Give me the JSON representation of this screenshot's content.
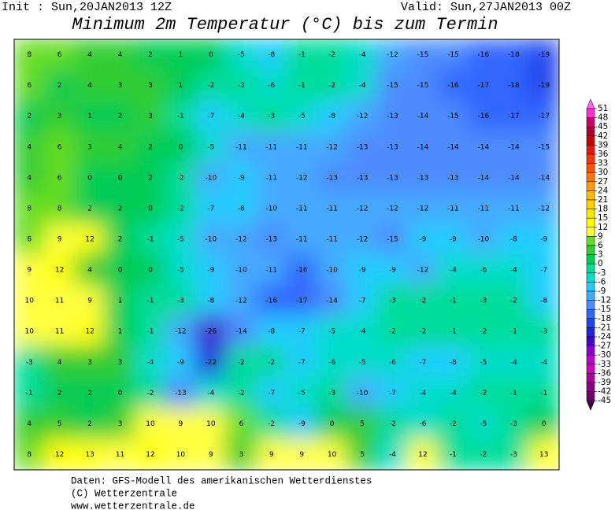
{
  "header": {
    "init": "Init : Sun,20JAN2013 12Z",
    "valid": "Valid: Sun,27JAN2013 00Z",
    "title": "Minimum 2m Temperatur (°C) bis zum Termin"
  },
  "map": {
    "grid": [
      [
        8,
        6,
        4,
        4,
        2,
        1,
        0,
        -5,
        -8,
        -1,
        -2,
        -4,
        -12,
        -15,
        -15,
        -16,
        -18,
        -19
      ],
      [
        6,
        2,
        4,
        3,
        3,
        1,
        -2,
        -3,
        -6,
        -1,
        -2,
        -4,
        -15,
        -15,
        -16,
        -17,
        -18,
        -19
      ],
      [
        2,
        3,
        1,
        2,
        3,
        -1,
        -7,
        -4,
        -3,
        -5,
        -8,
        -12,
        -13,
        -14,
        -15,
        -16,
        -17,
        -17
      ],
      [
        4,
        6,
        3,
        4,
        2,
        0,
        -5,
        -11,
        -11,
        -11,
        -12,
        -13,
        -13,
        -14,
        -14,
        -14,
        -14,
        -15
      ],
      [
        4,
        6,
        0,
        0,
        2,
        -2,
        -10,
        -9,
        -11,
        -12,
        -13,
        -13,
        -13,
        -13,
        -13,
        -14,
        -14,
        -14
      ],
      [
        8,
        8,
        2,
        2,
        0,
        -2,
        -7,
        -8,
        -10,
        -11,
        -11,
        -12,
        -12,
        -12,
        -11,
        -11,
        -11,
        -12
      ],
      [
        6,
        9,
        12,
        2,
        -1,
        -5,
        -10,
        -12,
        -13,
        -11,
        -11,
        -12,
        -15,
        -9,
        -9,
        -10,
        -8,
        -9
      ],
      [
        9,
        12,
        4,
        0,
        0,
        -5,
        -9,
        -10,
        -11,
        -16,
        -10,
        -9,
        -9,
        -12,
        -4,
        -6,
        -4,
        -7
      ],
      [
        10,
        11,
        9,
        1,
        -1,
        -3,
        -8,
        -12,
        -16,
        -17,
        -14,
        -7,
        -3,
        -2,
        -1,
        -3,
        -2,
        -8
      ],
      [
        10,
        11,
        12,
        1,
        -1,
        -12,
        -26,
        -14,
        -8,
        -7,
        -5,
        -4,
        -2,
        -2,
        -1,
        -2,
        -1,
        -3
      ],
      [
        -3,
        4,
        3,
        3,
        -4,
        -9,
        -22,
        -2,
        -2,
        -7,
        -6,
        -5,
        -6,
        -7,
        -8,
        -5,
        -4,
        -4
      ],
      [
        -1,
        2,
        2,
        0,
        -2,
        -13,
        -4,
        -2,
        -7,
        -5,
        -3,
        -10,
        -7,
        -4,
        -4,
        -2,
        -1,
        -1
      ],
      [
        4,
        5,
        2,
        3,
        10,
        9,
        10,
        6,
        -2,
        -9,
        0,
        5,
        -2,
        -6,
        -2,
        -5,
        -3,
        0
      ],
      [
        8,
        12,
        13,
        11,
        12,
        10,
        9,
        3,
        9,
        9,
        10,
        5,
        -4,
        12,
        -1,
        -2,
        -3,
        13
      ]
    ]
  },
  "colorbar": {
    "levels": [
      51,
      48,
      45,
      42,
      39,
      36,
      33,
      30,
      27,
      24,
      21,
      18,
      15,
      12,
      9,
      6,
      3,
      0,
      -3,
      -6,
      -9,
      -12,
      -15,
      -18,
      -21,
      -24,
      -27,
      -30,
      -33,
      -36,
      -39,
      -42,
      -45
    ],
    "colors": [
      "#ff66ff",
      "#ff33cc",
      "#cc0066",
      "#aa0033",
      "#cc0000",
      "#e61a00",
      "#ff3300",
      "#ff5500",
      "#ff7700",
      "#ff9900",
      "#ffbb00",
      "#ffd000",
      "#ffe600",
      "#ffff00",
      "#ffff40",
      "#66dd22",
      "#33cc33",
      "#00cc55",
      "#00dd99",
      "#00ddcc",
      "#22ccff",
      "#44aaff",
      "#4d8cff",
      "#3366ff",
      "#2244ee",
      "#2222dd",
      "#4400cc",
      "#8800cc",
      "#bb00cc",
      "#cc00bb",
      "#aa0099",
      "#880088",
      "#660066",
      "#440044"
    ]
  },
  "footer": {
    "line1": "Daten: GFS-Modell des amerikanischen Wetterdienstes",
    "line2": "(C) Wetterzentrale",
    "line3": "www.wetterzentrale.de"
  }
}
